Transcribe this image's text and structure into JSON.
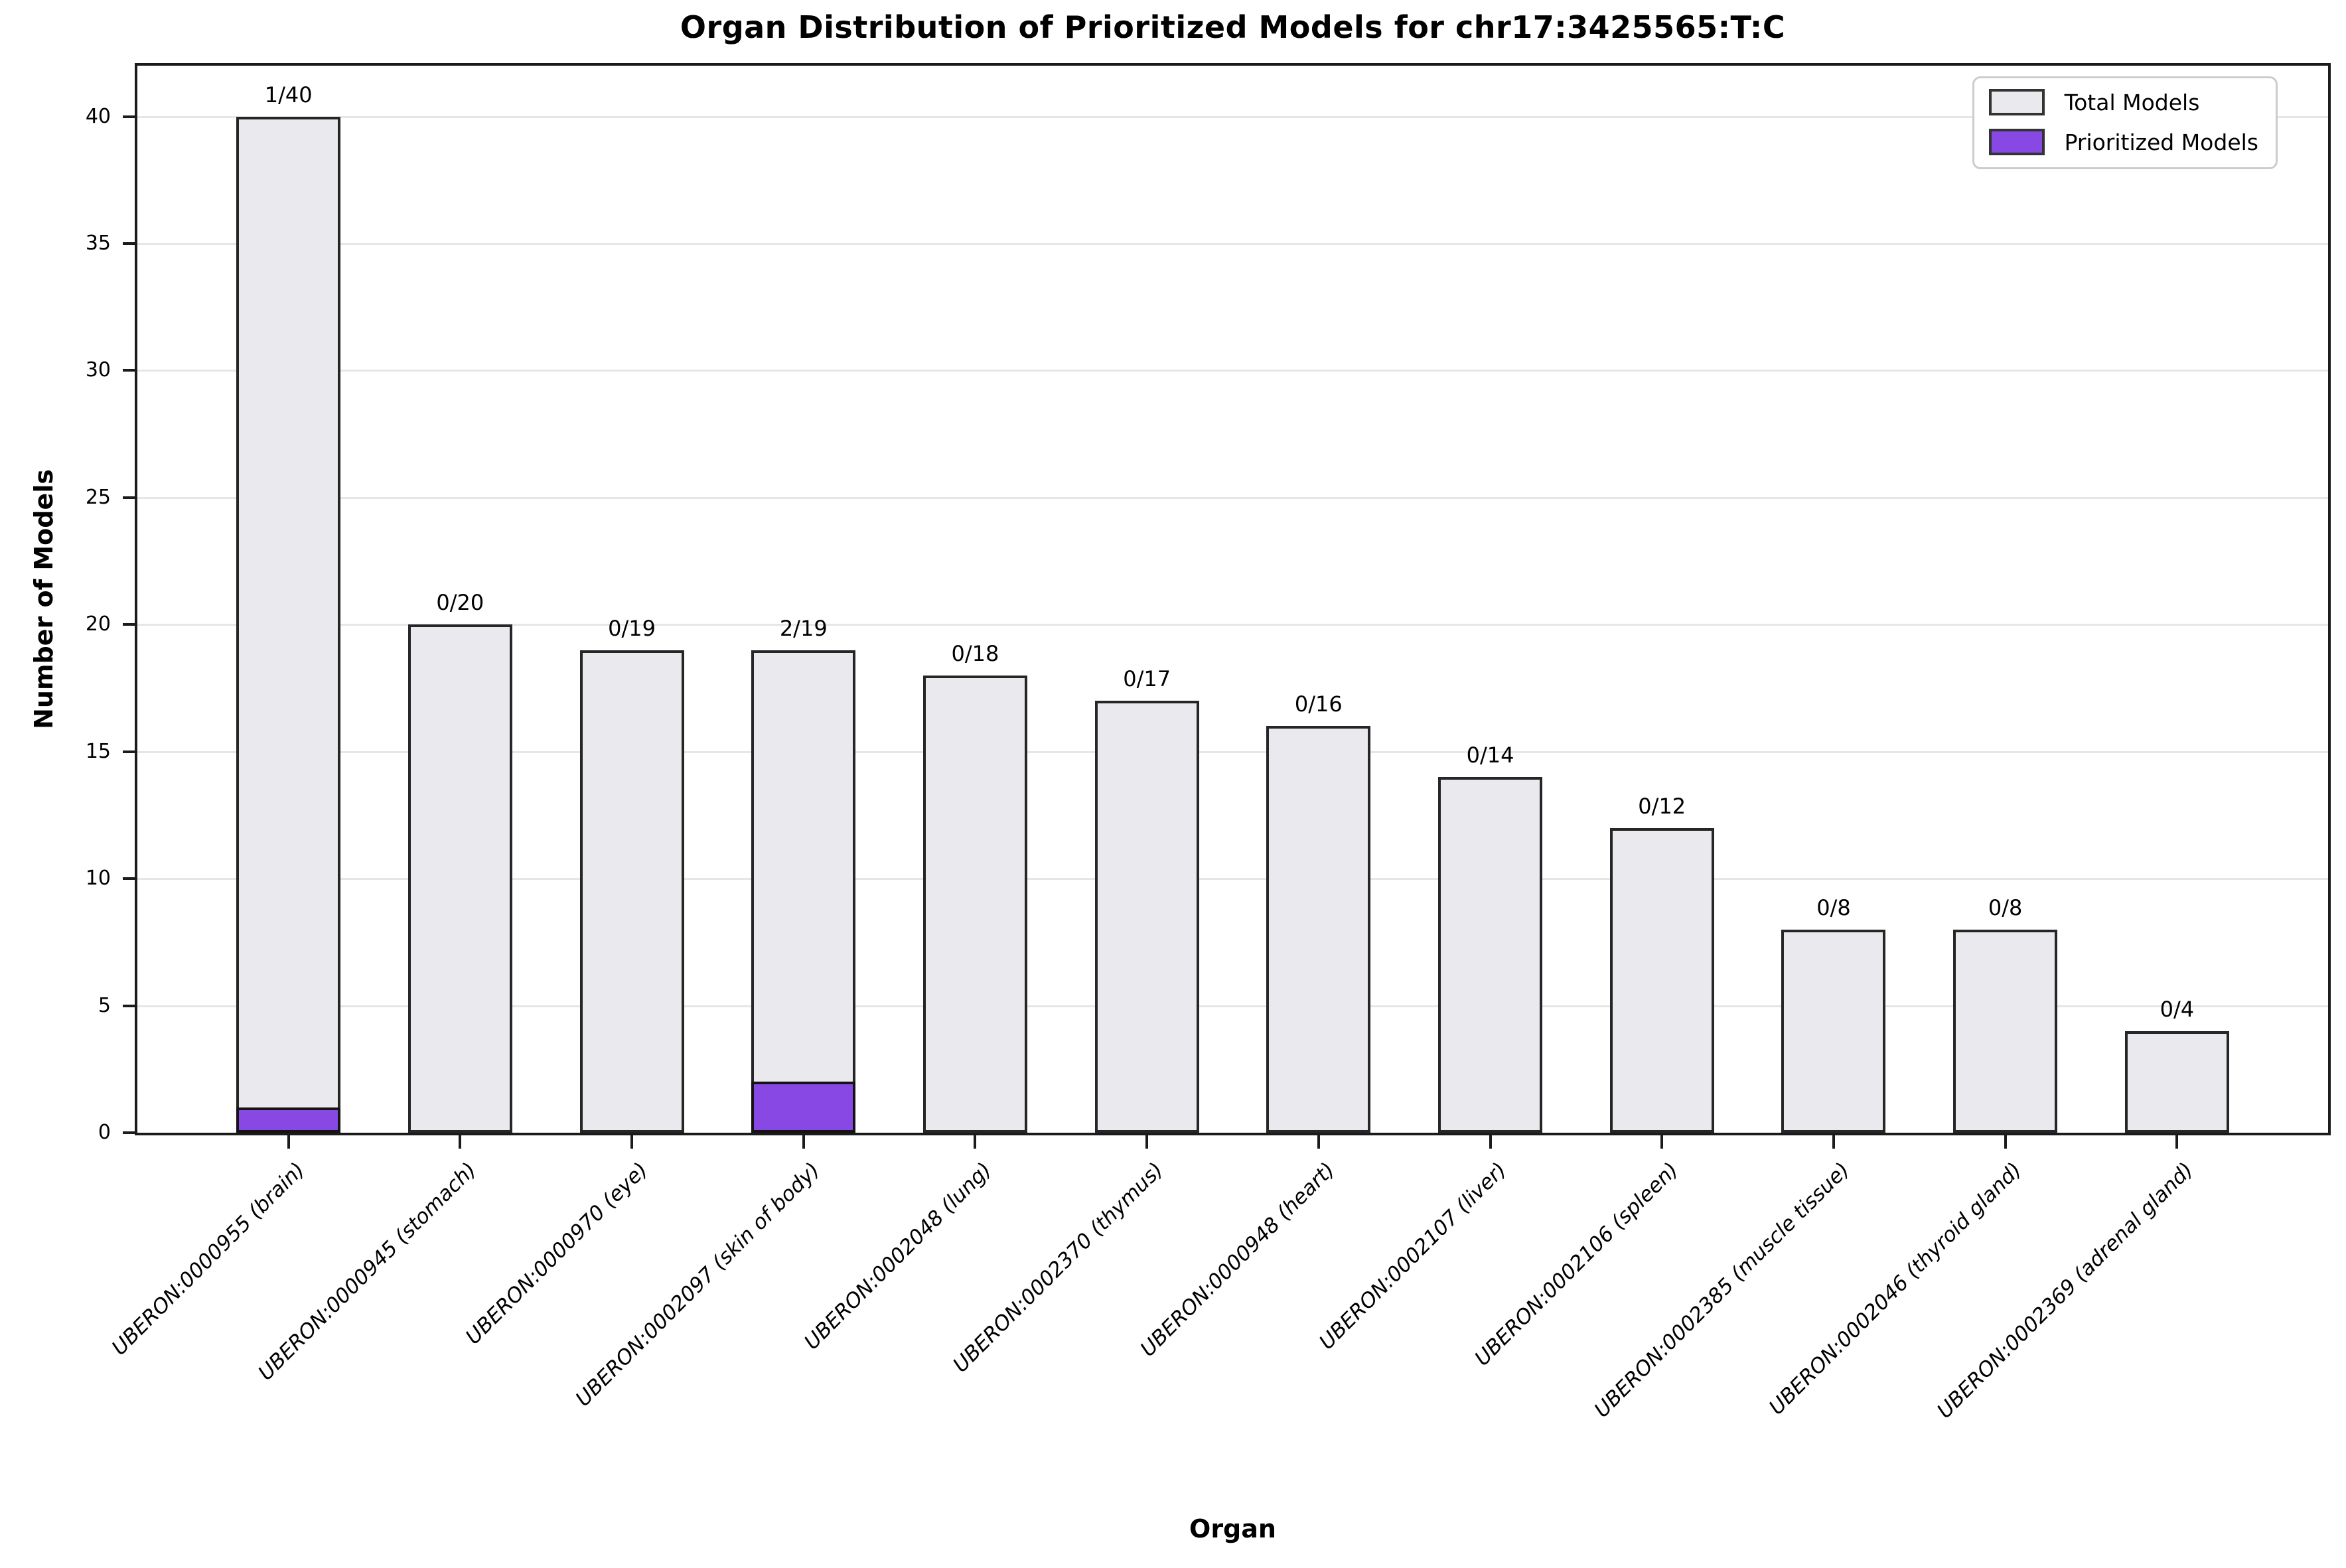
{
  "title": "Organ Distribution of Prioritized Models for chr17:3425565:T:C",
  "legend": {
    "total_label": "Total Models",
    "prioritized_label": "Prioritized Models"
  },
  "colors": {
    "total_fill": "#E9E9EE",
    "prioritized_fill": "#8848E4",
    "bar_edge": "#262626",
    "grid_line": "#E6E6E6",
    "axis": "#1B1B1B"
  },
  "chart_data": {
    "type": "bar",
    "stacked": true,
    "title": "Organ Distribution of Prioritized Models for chr17:3425565:T:C",
    "xlabel": "Organ",
    "ylabel": "Number of Models",
    "ylim": [
      0,
      42
    ],
    "yticks": [
      0,
      5,
      10,
      15,
      20,
      25,
      30,
      35,
      40
    ],
    "grid": "horizontal",
    "legend_position": "upper right",
    "categories": [
      "UBERON:0000955 (brain)",
      "UBERON:0000945 (stomach)",
      "UBERON:0000970 (eye)",
      "UBERON:0002097 (skin of body)",
      "UBERON:0002048 (lung)",
      "UBERON:0002370 (thymus)",
      "UBERON:0000948 (heart)",
      "UBERON:0002107 (liver)",
      "UBERON:0002106 (spleen)",
      "UBERON:0002385 (muscle tissue)",
      "UBERON:0002046 (thyroid gland)",
      "UBERON:0002369 (adrenal gland)"
    ],
    "series": [
      {
        "name": "Total Models",
        "values": [
          40,
          20,
          19,
          19,
          18,
          17,
          16,
          14,
          12,
          8,
          8,
          4
        ]
      },
      {
        "name": "Prioritized Models",
        "values": [
          1,
          0,
          0,
          2,
          0,
          0,
          0,
          0,
          0,
          0,
          0,
          0
        ]
      }
    ],
    "bar_labels": [
      "1/40",
      "0/20",
      "0/19",
      "2/19",
      "0/18",
      "0/17",
      "0/16",
      "0/14",
      "0/12",
      "0/8",
      "0/8",
      "0/4"
    ]
  }
}
